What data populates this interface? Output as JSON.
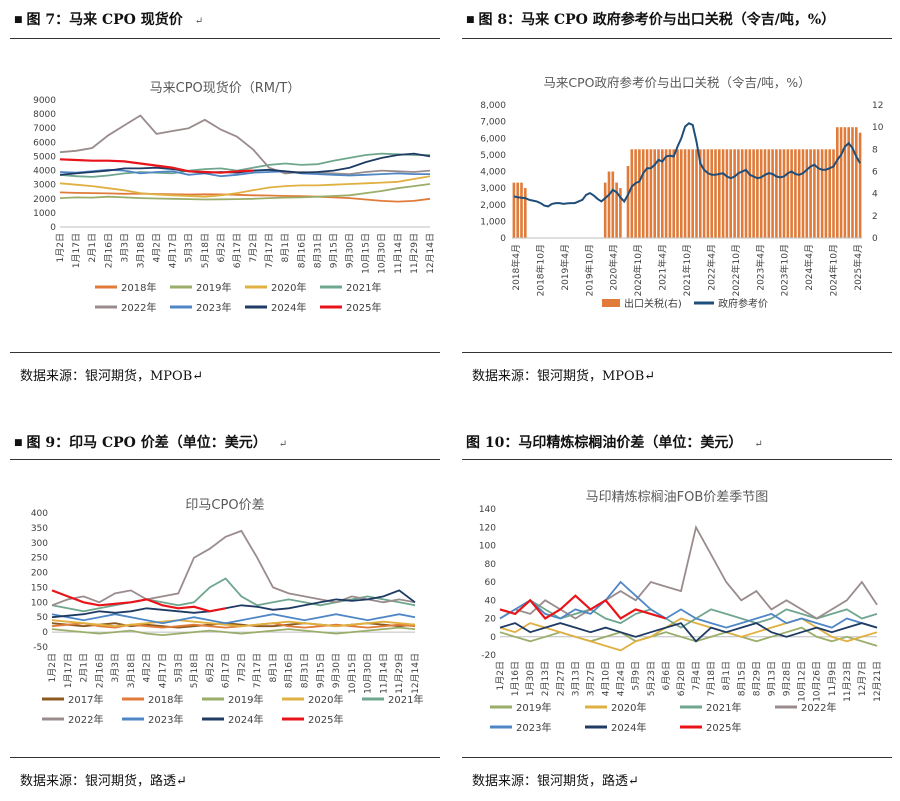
{
  "panels": [
    {
      "caption": "图 7：马来 CPO 现货价",
      "source": "数据来源：银河期货，MPOB"
    },
    {
      "caption": "图 8：马来 CPO 政府参考价与出口关税（令吉/吨，%）",
      "source": "数据来源：银河期货，MPOB"
    },
    {
      "caption": "图 9：印马 CPO 价差（单位：美元）",
      "source": "数据来源：银河期货，路透"
    },
    {
      "caption": "图 10：马印精炼棕榈油价差（单位：美元）",
      "source": "数据来源：银河期货，路透"
    }
  ],
  "colors": {
    "2017": "#8B5A1E",
    "2018": "#E07B39",
    "2019": "#9AAE6A",
    "2020": "#E0B040",
    "2021": "#6FA68E",
    "2022": "#9A8C8C",
    "2023": "#4F86C6",
    "2024": "#1F3B63",
    "2025": "#E8141A",
    "bar": "#E07B39",
    "ref": "#1F4E79"
  },
  "chart_data": [
    {
      "type": "line",
      "title": "马来CPO现货价（RM/T）",
      "ylim": [
        0,
        9000
      ],
      "yticks": [
        "0",
        "1000",
        "2000",
        "3000",
        "4000",
        "5000",
        "6000",
        "7000",
        "8000",
        "9000"
      ],
      "xticks": [
        "1月2日",
        "1月17日",
        "2月1日",
        "2月16日",
        "3月3日",
        "3月18日",
        "4月2日",
        "4月17日",
        "5月3日",
        "5月18日",
        "6月2日",
        "6月17日",
        "7月2日",
        "7月17日",
        "8月1日",
        "8月16日",
        "8月31日",
        "9月15日",
        "9月30日",
        "10月15日",
        "10月30日",
        "11月14日",
        "11月29日",
        "12月14日"
      ],
      "series": [
        {
          "name": "2018年",
          "key": "2018",
          "values": [
            2450,
            2420,
            2400,
            2380,
            2350,
            2360,
            2340,
            2320,
            2300,
            2320,
            2310,
            2280,
            2250,
            2230,
            2200,
            2180,
            2150,
            2100,
            2050,
            1950,
            1850,
            1800,
            1850,
            2000
          ]
        },
        {
          "name": "2019年",
          "key": "2019",
          "values": [
            2050,
            2100,
            2080,
            2150,
            2100,
            2050,
            2020,
            2000,
            1980,
            1950,
            1960,
            1980,
            2000,
            2050,
            2080,
            2100,
            2150,
            2200,
            2250,
            2400,
            2550,
            2750,
            2900,
            3050
          ]
        },
        {
          "name": "2020年",
          "key": "2020",
          "values": [
            3100,
            3000,
            2900,
            2750,
            2600,
            2400,
            2300,
            2250,
            2200,
            2150,
            2250,
            2400,
            2600,
            2800,
            2900,
            2950,
            2950,
            3000,
            3050,
            3100,
            3150,
            3200,
            3400,
            3600
          ]
        },
        {
          "name": "2021年",
          "key": "2021",
          "values": [
            3700,
            3600,
            3550,
            3650,
            3800,
            3900,
            3850,
            3800,
            4000,
            4100,
            4150,
            4000,
            4200,
            4400,
            4500,
            4400,
            4450,
            4700,
            4900,
            5100,
            5200,
            5150,
            5100,
            5100
          ]
        },
        {
          "name": "2022年",
          "key": "2022",
          "values": [
            5300,
            5400,
            5600,
            6500,
            7200,
            7900,
            6600,
            6800,
            7000,
            7600,
            6900,
            6400,
            5500,
            4200,
            3800,
            3900,
            3850,
            3800,
            3750,
            3900,
            4000,
            3950,
            3900,
            4000
          ]
        },
        {
          "name": "2023年",
          "key": "2023",
          "values": [
            3900,
            3850,
            3950,
            4050,
            4000,
            3800,
            3900,
            3950,
            3700,
            3800,
            3600,
            3700,
            3850,
            3900,
            3950,
            3800,
            3750,
            3700,
            3650,
            3700,
            3750,
            3800,
            3750,
            3750
          ]
        },
        {
          "name": "2024年",
          "key": "2024",
          "values": [
            3700,
            3800,
            3900,
            4000,
            4150,
            4150,
            4200,
            4100,
            3950,
            3850,
            3900,
            3850,
            4000,
            4050,
            3950,
            3850,
            3900,
            4000,
            4200,
            4600,
            4900,
            5100,
            5200,
            5000
          ]
        },
        {
          "name": "2025年",
          "key": "2025",
          "values": [
            4800,
            4750,
            4700,
            4700,
            4650,
            4500,
            4350,
            4200,
            3950,
            3900,
            3850,
            3950,
            4000,
            null,
            null,
            null,
            null,
            null,
            null,
            null,
            null,
            null,
            null,
            null
          ]
        }
      ]
    },
    {
      "type": "bar+line",
      "title": "马来CPO政府参考价与出口关税（令吉/吨，%）",
      "ylim": [
        0,
        8000
      ],
      "y2lim": [
        0,
        12
      ],
      "yticks": [
        "0",
        "1,000",
        "2,000",
        "3,000",
        "4,000",
        "5,000",
        "6,000",
        "7,000",
        "8,000"
      ],
      "y2ticks": [
        "0",
        "2",
        "4",
        "6",
        "8",
        "10",
        "12"
      ],
      "xticks": [
        "2018年4月",
        "2018年10月",
        "2019年4月",
        "2019年10月",
        "2020年4月",
        "2020年10月",
        "2021年4月",
        "2021年10月",
        "2022年4月",
        "2022年10月",
        "2023年4月",
        "2023年10月",
        "2024年4月",
        "2024年10月",
        "2025年4月"
      ],
      "series": [
        {
          "name": "出口关税(右)",
          "key": "bar",
          "axis": "right",
          "values": [
            5,
            5,
            5,
            4.5,
            0,
            0,
            0,
            0,
            0,
            0,
            0,
            0,
            0,
            0,
            0,
            0,
            0,
            0,
            0,
            0,
            0,
            0,
            0,
            0,
            5,
            6,
            6,
            5,
            4.5,
            0,
            6.5,
            8,
            8,
            8,
            8,
            8,
            8,
            8,
            8,
            8,
            8,
            8,
            8,
            8,
            8,
            8,
            8,
            8,
            8,
            8,
            8,
            8,
            8,
            8,
            8,
            8,
            8,
            8,
            8,
            8,
            8,
            8,
            8,
            8,
            8,
            8,
            8,
            8,
            8,
            8,
            8,
            8,
            8,
            8,
            8,
            8,
            8,
            8,
            8,
            8,
            8,
            8,
            8,
            8,
            8,
            10,
            10,
            10,
            10,
            10,
            10,
            9.5
          ]
        },
        {
          "name": "政府参考价",
          "key": "ref",
          "axis": "left",
          "values": [
            2500,
            2450,
            2420,
            2400,
            2300,
            2250,
            2200,
            2100,
            1950,
            1900,
            2050,
            2100,
            2100,
            2050,
            2080,
            2100,
            2100,
            2200,
            2300,
            2600,
            2700,
            2550,
            2350,
            2200,
            2400,
            2600,
            2900,
            2750,
            2450,
            2200,
            2600,
            3100,
            3300,
            3400,
            3900,
            4200,
            4200,
            4400,
            4700,
            4600,
            4900,
            4950,
            4900,
            5500,
            6000,
            6700,
            6900,
            6800,
            5800,
            4500,
            4100,
            3900,
            3800,
            3800,
            3850,
            3900,
            3700,
            3600,
            3700,
            3900,
            4000,
            4100,
            3800,
            3700,
            3600,
            3650,
            3800,
            3900,
            3850,
            3700,
            3650,
            3700,
            3900,
            4000,
            3850,
            3800,
            3900,
            4100,
            4300,
            4400,
            4200,
            4100,
            4100,
            4200,
            4300,
            4700,
            5000,
            5500,
            5700,
            5400,
            4900,
            4500
          ]
        }
      ]
    },
    {
      "type": "line",
      "title": "印马CPO价差",
      "ylim": [
        -50,
        400
      ],
      "yticks": [
        "-50",
        "0",
        "50",
        "100",
        "150",
        "200",
        "250",
        "300",
        "350",
        "400"
      ],
      "xticks": [
        "1月2日",
        "1月17日",
        "2月1日",
        "2月16日",
        "3月3日",
        "3月18日",
        "4月2日",
        "4月17日",
        "5月3日",
        "5月18日",
        "6月2日",
        "6月17日",
        "7月2日",
        "7月17日",
        "8月1日",
        "8月16日",
        "8月31日",
        "9月15日",
        "9月30日",
        "10月15日",
        "10月30日",
        "11月14日",
        "11月29日",
        "12月14日"
      ],
      "series": [
        {
          "name": "2017年",
          "key": "2017",
          "values": [
            30,
            25,
            20,
            25,
            30,
            20,
            25,
            20,
            15,
            20,
            25,
            30,
            25,
            20,
            20,
            25,
            30,
            25,
            20,
            25,
            30,
            25,
            20,
            25
          ]
        },
        {
          "name": "2018年",
          "key": "2018",
          "values": [
            20,
            25,
            30,
            20,
            15,
            25,
            20,
            15,
            20,
            25,
            20,
            15,
            20,
            25,
            30,
            20,
            15,
            20,
            25,
            20,
            15,
            20,
            25,
            20
          ]
        },
        {
          "name": "2019年",
          "key": "2019",
          "values": [
            10,
            5,
            0,
            -5,
            0,
            5,
            -5,
            -10,
            -5,
            0,
            5,
            0,
            -5,
            0,
            5,
            10,
            5,
            0,
            -5,
            0,
            5,
            10,
            15,
            10
          ]
        },
        {
          "name": "2020年",
          "key": "2020",
          "values": [
            40,
            35,
            30,
            25,
            20,
            25,
            30,
            35,
            40,
            35,
            30,
            25,
            20,
            25,
            30,
            35,
            30,
            25,
            20,
            25,
            30,
            35,
            30,
            25
          ]
        },
        {
          "name": "2021年",
          "key": "2021",
          "values": [
            90,
            80,
            70,
            80,
            90,
            100,
            110,
            100,
            90,
            100,
            150,
            180,
            120,
            90,
            100,
            110,
            100,
            90,
            100,
            110,
            120,
            110,
            100,
            90
          ]
        },
        {
          "name": "2022年",
          "key": "2022",
          "values": [
            90,
            110,
            120,
            100,
            130,
            140,
            110,
            120,
            130,
            250,
            280,
            320,
            340,
            250,
            150,
            130,
            120,
            110,
            100,
            120,
            110,
            100,
            110,
            100
          ]
        },
        {
          "name": "2023年",
          "key": "2023",
          "values": [
            60,
            50,
            40,
            50,
            60,
            50,
            40,
            30,
            40,
            50,
            40,
            30,
            40,
            50,
            60,
            50,
            40,
            50,
            60,
            50,
            40,
            50,
            60,
            50
          ]
        },
        {
          "name": "2024年",
          "key": "2024",
          "values": [
            50,
            55,
            60,
            70,
            65,
            70,
            80,
            75,
            70,
            65,
            70,
            80,
            90,
            85,
            75,
            80,
            90,
            100,
            110,
            105,
            110,
            120,
            140,
            100
          ]
        },
        {
          "name": "2025年",
          "key": "2025",
          "values": [
            140,
            120,
            100,
            90,
            95,
            100,
            110,
            90,
            80,
            85,
            70,
            80,
            null,
            null,
            null,
            null,
            null,
            null,
            null,
            null,
            null,
            null,
            null,
            null
          ]
        }
      ]
    },
    {
      "type": "line",
      "title": "马印精炼棕榈油FOB价差季节图",
      "ylim": [
        -20,
        140
      ],
      "yticks": [
        "-20",
        "0",
        "20",
        "40",
        "60",
        "80",
        "100",
        "120",
        "140"
      ],
      "xticks": [
        "1月2日",
        "1月16日",
        "1月30日",
        "2月13日",
        "2月27日",
        "3月13日",
        "3月27日",
        "4月10日",
        "4月24日",
        "5月9日",
        "5月23日",
        "6月6日",
        "6月20日",
        "7月4日",
        "7月18日",
        "8月1日",
        "8月15日",
        "8月29日",
        "9月13日",
        "9月28日",
        "10月12日",
        "10月26日",
        "11月9日",
        "11月23日",
        "12月7日",
        "12月21日"
      ],
      "series": [
        {
          "name": "2019年",
          "key": "2019",
          "values": [
            5,
            0,
            -5,
            0,
            5,
            0,
            -5,
            0,
            5,
            -5,
            0,
            5,
            0,
            -5,
            0,
            5,
            0,
            -5,
            0,
            5,
            10,
            0,
            -5,
            0,
            -5,
            -10
          ]
        },
        {
          "name": "2020年",
          "key": "2020",
          "values": [
            10,
            5,
            15,
            10,
            5,
            0,
            -5,
            -10,
            -15,
            -5,
            0,
            10,
            20,
            15,
            10,
            5,
            0,
            5,
            10,
            15,
            20,
            10,
            0,
            -5,
            0,
            5
          ]
        },
        {
          "name": "2021年",
          "key": "2021",
          "values": [
            30,
            25,
            40,
            30,
            20,
            25,
            30,
            20,
            15,
            25,
            30,
            20,
            10,
            20,
            30,
            25,
            20,
            15,
            20,
            30,
            25,
            20,
            25,
            30,
            20,
            25
          ]
        },
        {
          "name": "2022年",
          "key": "2022",
          "values": [
            20,
            30,
            25,
            40,
            30,
            20,
            30,
            40,
            50,
            40,
            60,
            55,
            50,
            120,
            90,
            60,
            40,
            50,
            30,
            40,
            30,
            20,
            30,
            40,
            60,
            35
          ]
        },
        {
          "name": "2023年",
          "key": "2023",
          "values": [
            20,
            30,
            40,
            25,
            20,
            30,
            25,
            40,
            60,
            45,
            30,
            20,
            30,
            20,
            15,
            10,
            15,
            20,
            25,
            15,
            20,
            15,
            10,
            20,
            15,
            10
          ]
        },
        {
          "name": "2024年",
          "key": "2024",
          "values": [
            10,
            15,
            5,
            10,
            15,
            10,
            5,
            10,
            5,
            0,
            5,
            10,
            15,
            -5,
            10,
            5,
            10,
            15,
            5,
            0,
            5,
            10,
            5,
            10,
            15,
            10
          ]
        },
        {
          "name": "2025年",
          "key": "2025",
          "values": [
            30,
            25,
            40,
            20,
            30,
            45,
            30,
            40,
            20,
            30,
            25,
            20,
            null,
            null,
            null,
            null,
            null,
            null,
            null,
            null,
            null,
            null,
            null,
            null,
            null,
            null
          ]
        }
      ]
    }
  ]
}
